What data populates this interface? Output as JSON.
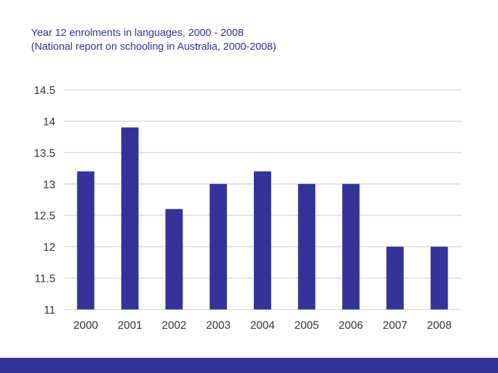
{
  "slide": {
    "title_line1": "Year 12 enrolments in languages, 2000 - 2008",
    "title_line2": "(National report on schooling in Australia, 2000-2008)"
  },
  "colors": {
    "bar": "#333399",
    "title": "#2e3192",
    "gridline": "#c8c8c8",
    "footer_bar": "#333399"
  },
  "chart_data": {
    "type": "bar",
    "title": "Year 12 enrolments in languages, 2000 - 2008",
    "subtitle": "(National report on schooling in Australia, 2000-2008)",
    "xlabel": "",
    "ylabel": "",
    "categories": [
      "2000",
      "2001",
      "2002",
      "2003",
      "2004",
      "2005",
      "2006",
      "2007",
      "2008"
    ],
    "values": [
      13.2,
      13.9,
      12.6,
      13.0,
      13.2,
      13.0,
      13.0,
      12.0,
      12.0
    ],
    "ylim": [
      11,
      14.5
    ],
    "yticks": [
      "14.5",
      "14",
      "13.5",
      "13",
      "12.5",
      "12",
      "11.5",
      "11"
    ],
    "ytick_values": [
      14.5,
      14,
      13.5,
      13,
      12.5,
      12,
      11.5,
      11
    ],
    "grid": true,
    "legend": "none"
  }
}
